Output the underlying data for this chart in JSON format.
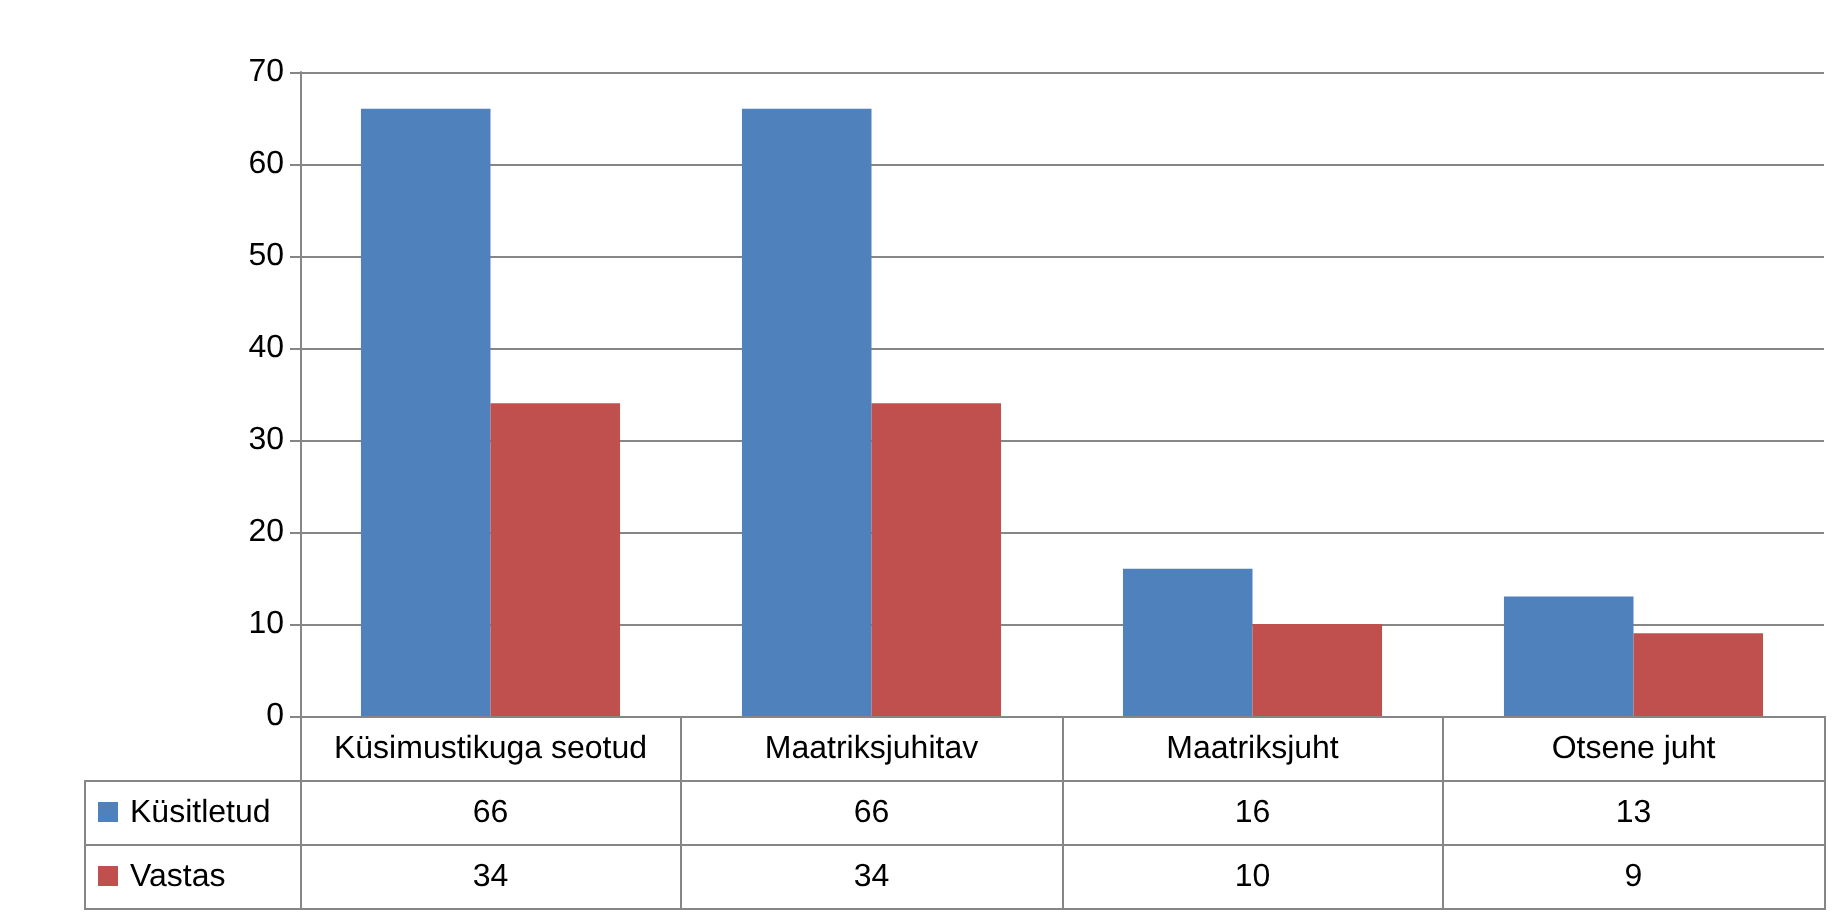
{
  "chart_data": {
    "type": "bar",
    "categories": [
      "Küsimustikuga seotud",
      "Maatriksjuhitav",
      "Maatriksjuht",
      "Otsene juht"
    ],
    "series": [
      {
        "name": "Küsitletud",
        "color": "#4f81bd",
        "values": [
          66,
          66,
          16,
          13
        ]
      },
      {
        "name": "Vastas",
        "color": "#c0504d",
        "values": [
          34,
          34,
          10,
          9
        ]
      }
    ],
    "ylim": [
      0,
      70
    ],
    "yticks": [
      0,
      10,
      20,
      30,
      40,
      50,
      60,
      70
    ],
    "grid": "y",
    "legend": "bottom",
    "data_labels": true
  }
}
